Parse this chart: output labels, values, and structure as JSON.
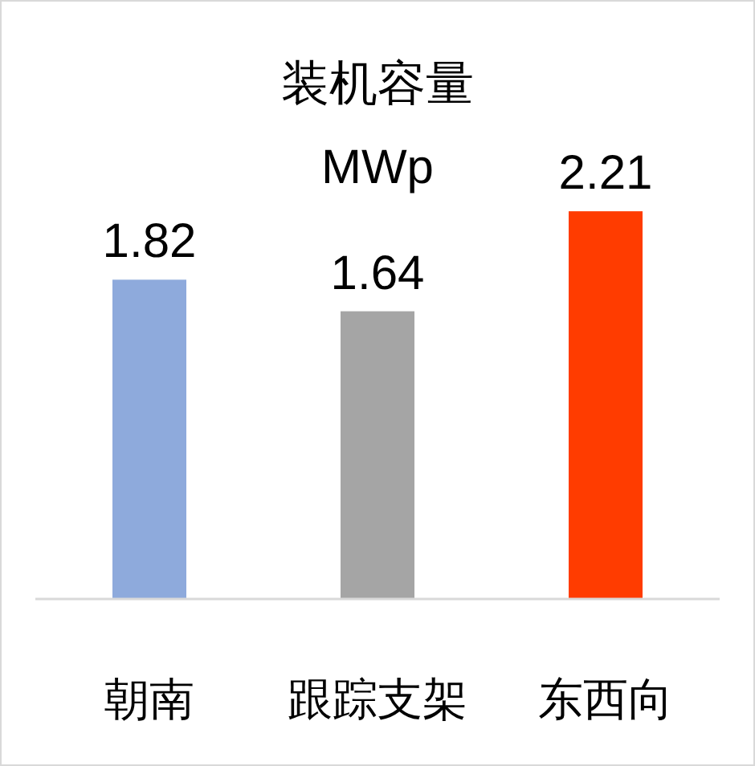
{
  "chart_data": {
    "type": "bar",
    "title": "装机容量",
    "subtitle": "MWp",
    "categories": [
      "朝南",
      "跟踪支架",
      "东西向"
    ],
    "values": [
      1.82,
      1.64,
      2.21
    ],
    "colors": [
      "#8eaadc",
      "#a5a5a5",
      "#ff3c00"
    ],
    "data_labels": true
  }
}
